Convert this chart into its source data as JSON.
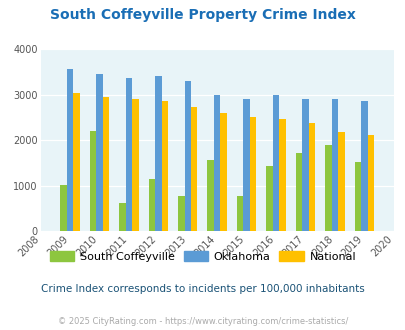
{
  "title": "South Coffeyville Property Crime Index",
  "all_xtick_years": [
    2008,
    2009,
    2010,
    2011,
    2012,
    2013,
    2014,
    2015,
    2016,
    2017,
    2018,
    2019,
    2020
  ],
  "data_years": [
    2009,
    2010,
    2011,
    2012,
    2013,
    2014,
    2015,
    2016,
    2017,
    2018,
    2019
  ],
  "south_coffeyville": [
    1010,
    2200,
    620,
    1140,
    780,
    1560,
    780,
    1430,
    1720,
    1900,
    1510
  ],
  "oklahoma": [
    3580,
    3450,
    3370,
    3420,
    3300,
    3000,
    2900,
    3000,
    2900,
    2900,
    2860
  ],
  "national": [
    3040,
    2950,
    2920,
    2870,
    2730,
    2610,
    2510,
    2460,
    2390,
    2180,
    2110
  ],
  "color_sc": "#8dc63f",
  "color_ok": "#5b9bd5",
  "color_nat": "#ffc000",
  "ylim": [
    0,
    4000
  ],
  "yticks": [
    0,
    1000,
    2000,
    3000,
    4000
  ],
  "background_color": "#e8f4f8",
  "title_color": "#1a6eb5",
  "subtitle": "Crime Index corresponds to incidents per 100,000 inhabitants",
  "footer": "© 2025 CityRating.com - https://www.cityrating.com/crime-statistics/",
  "subtitle_color": "#1a5276",
  "footer_color": "#aaaaaa",
  "bar_width": 0.22
}
